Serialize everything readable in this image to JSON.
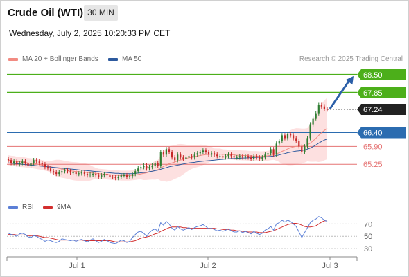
{
  "header": {
    "title": "Crude Oil (WTI)",
    "timeframe": "30 MIN",
    "datetime": "Wednesday, July 2, 2025 10:20:33 PM CET"
  },
  "legend": {
    "ma_bb_label": "MA 20 + Bollinger Bands",
    "ma50_label": "MA 50",
    "ma_bb_color": "#f28b82",
    "ma50_color": "#2d5a9e",
    "credit": "Research © 2025 Trading Central"
  },
  "colors": {
    "up": "#2e7d32",
    "down": "#c62828",
    "resistance": "#4caf1a",
    "pivot": "#2b6cb0",
    "support": "#e57373",
    "price_box": "#222222",
    "bb_fill": "#fde0e0",
    "rsi": "#5b7fd6",
    "rsi_ma": "#d32f2f",
    "arrow": "#2b5fa8"
  },
  "chart_data": [
    {
      "type": "candlestick",
      "y_range": [
        64.3,
        68.9
      ],
      "x_ticks": [
        "Jul 1",
        "Jul 2",
        "Jul 3"
      ],
      "levels": [
        {
          "value": 68.5,
          "label": "68.50",
          "kind": "resistance"
        },
        {
          "value": 67.85,
          "label": "67.85",
          "kind": "resistance"
        },
        {
          "value": 67.24,
          "label": "67.24",
          "kind": "last"
        },
        {
          "value": 66.4,
          "label": "66.40",
          "kind": "pivot"
        },
        {
          "value": 65.9,
          "label": "65.90",
          "kind": "support"
        },
        {
          "value": 65.25,
          "label": "65.25",
          "kind": "support"
        }
      ],
      "closes": [
        65.4,
        65.3,
        65.35,
        65.25,
        65.3,
        65.35,
        65.3,
        65.2,
        65.3,
        65.4,
        65.35,
        65.3,
        65.25,
        65.15,
        65.1,
        65.0,
        64.95,
        64.9,
        64.95,
        65.0,
        65.05,
        65.0,
        64.95,
        64.95,
        64.9,
        64.92,
        64.95,
        64.9,
        64.85,
        64.88,
        64.9,
        64.85,
        64.8,
        64.85,
        64.9,
        64.85,
        64.8,
        64.78,
        64.75,
        64.8,
        64.85,
        64.85,
        64.8,
        64.82,
        64.9,
        65.0,
        65.1,
        65.15,
        65.2,
        65.1,
        65.15,
        65.2,
        65.3,
        65.2,
        65.7,
        65.6,
        65.8,
        65.7,
        65.5,
        65.4,
        65.6,
        65.5,
        65.45,
        65.5,
        65.55,
        65.5,
        65.6,
        65.65,
        65.7,
        65.75,
        65.7,
        65.6,
        65.65,
        65.6,
        65.55,
        65.55,
        65.5,
        65.55,
        65.6,
        65.55,
        65.5,
        65.5,
        65.55,
        65.5,
        65.55,
        65.5,
        65.45,
        65.55,
        65.5,
        65.45,
        65.5,
        65.6,
        65.65,
        65.8,
        65.6,
        66.0,
        66.1,
        66.3,
        66.2,
        66.35,
        66.3,
        66.2,
        66.1,
        65.9,
        65.7,
        65.9,
        66.2,
        66.7,
        66.9,
        67.1,
        67.4,
        67.35,
        67.25,
        67.24
      ],
      "ma20": [
        65.4,
        65.38,
        65.37,
        65.35,
        65.34,
        65.33,
        65.32,
        65.3,
        65.29,
        65.28,
        65.26,
        65.24,
        65.22,
        65.2,
        65.18,
        65.16,
        65.14,
        65.12,
        65.1,
        65.08,
        65.06,
        65.04,
        65.02,
        65.0,
        64.99,
        64.98,
        64.97,
        64.96,
        64.95,
        64.94,
        64.93,
        64.92,
        64.91,
        64.9,
        64.89,
        64.88,
        64.87,
        64.86,
        64.85,
        64.85,
        64.84,
        64.84,
        64.84,
        64.84,
        64.85,
        64.86,
        64.88,
        64.9,
        64.92,
        64.94,
        64.97,
        65.0,
        65.03,
        65.06,
        65.12,
        65.17,
        65.22,
        65.27,
        65.3,
        65.33,
        65.37,
        65.4,
        65.43,
        65.46,
        65.49,
        65.51,
        65.53,
        65.55,
        65.57,
        65.59,
        65.6,
        65.61,
        65.62,
        65.62,
        65.62,
        65.62,
        65.61,
        65.61,
        65.6,
        65.6,
        65.59,
        65.58,
        65.58,
        65.57,
        65.57,
        65.56,
        65.55,
        65.55,
        65.55,
        65.54,
        65.54,
        65.55,
        65.56,
        65.58,
        65.59,
        65.63,
        65.67,
        65.72,
        65.76,
        65.81,
        65.85,
        65.88,
        65.9,
        65.91,
        65.91,
        65.93,
        65.96,
        66.02,
        66.1,
        66.19,
        66.3,
        66.4,
        66.48,
        66.55
      ],
      "ma50": [
        65.3,
        65.29,
        65.28,
        65.27,
        65.26,
        65.25,
        65.24,
        65.23,
        65.22,
        65.21,
        65.2,
        65.19,
        65.18,
        65.17,
        65.16,
        65.15,
        65.14,
        65.13,
        65.12,
        65.11,
        65.1,
        65.09,
        65.08,
        65.07,
        65.06,
        65.05,
        65.04,
        65.03,
        65.02,
        65.01,
        65.0,
        64.99,
        64.98,
        64.97,
        64.96,
        64.95,
        64.94,
        64.93,
        64.92,
        64.92,
        64.91,
        64.91,
        64.91,
        64.91,
        64.91,
        64.92,
        64.93,
        64.94,
        64.95,
        64.96,
        64.98,
        65.0,
        65.02,
        65.04,
        65.07,
        65.1,
        65.13,
        65.16,
        65.18,
        65.2,
        65.22,
        65.24,
        65.26,
        65.28,
        65.3,
        65.31,
        65.32,
        65.34,
        65.35,
        65.36,
        65.37,
        65.38,
        65.39,
        65.4,
        65.41,
        65.42,
        65.43,
        65.44,
        65.45,
        65.46,
        65.46,
        65.47,
        65.47,
        65.48,
        65.48,
        65.49,
        65.49,
        65.5,
        65.5,
        65.51,
        65.51,
        65.52,
        65.53,
        65.54,
        65.55,
        65.57,
        65.59,
        65.62,
        65.64,
        65.67,
        65.69,
        65.71,
        65.73,
        65.74,
        65.75,
        65.77,
        65.8,
        65.84,
        65.89,
        65.95,
        66.02,
        66.08,
        66.13,
        66.17
      ]
    },
    {
      "type": "line",
      "name": "RSI",
      "y_ticks": [
        70,
        50,
        30
      ],
      "y_range": [
        20,
        85
      ],
      "series": [
        {
          "name": "RSI",
          "values": [
            55,
            53,
            52,
            50,
            54,
            55,
            53,
            49,
            48,
            51,
            50,
            47,
            45,
            42,
            44,
            43,
            41,
            40,
            42,
            46,
            45,
            44,
            43,
            44,
            42,
            44,
            45,
            43,
            41,
            44,
            46,
            43,
            40,
            42,
            45,
            43,
            40,
            39,
            38,
            41,
            44,
            43,
            40,
            42,
            48,
            53,
            57,
            58,
            55,
            50,
            56,
            60,
            62,
            58,
            72,
            68,
            74,
            70,
            63,
            60,
            66,
            62,
            60,
            62,
            64,
            61,
            64,
            66,
            67,
            69,
            66,
            62,
            63,
            61,
            59,
            60,
            58,
            60,
            62,
            59,
            57,
            57,
            59,
            56,
            58,
            56,
            54,
            58,
            55,
            53,
            55,
            60,
            62,
            66,
            60,
            70,
            72,
            76,
            73,
            76,
            74,
            70,
            66,
            57,
            48,
            56,
            64,
            72,
            76,
            78,
            82,
            80,
            76,
            74
          ]
        },
        {
          "name": "9MA",
          "values": [
            53,
            53,
            53,
            52,
            52,
            52,
            52,
            51,
            51,
            51,
            51,
            50,
            49,
            48,
            48,
            47,
            46,
            45,
            44,
            44,
            44,
            44,
            44,
            44,
            44,
            44,
            44,
            43,
            43,
            43,
            43,
            43,
            43,
            43,
            43,
            43,
            43,
            42,
            41,
            41,
            41,
            41,
            41,
            41,
            42,
            43,
            45,
            47,
            48,
            49,
            50,
            52,
            54,
            55,
            58,
            60,
            62,
            64,
            65,
            65,
            65,
            65,
            64,
            64,
            63,
            63,
            63,
            63,
            63,
            63,
            63,
            63,
            63,
            63,
            62,
            62,
            61,
            61,
            61,
            60,
            60,
            59,
            59,
            58,
            58,
            57,
            57,
            57,
            57,
            56,
            56,
            56,
            57,
            58,
            59,
            61,
            63,
            65,
            67,
            69,
            70,
            71,
            71,
            70,
            68,
            66,
            65,
            65,
            66,
            67,
            70,
            73,
            75,
            75
          ]
        }
      ]
    }
  ],
  "rsi_legend": {
    "rsi_label": "RSI",
    "ma_label": "9MA"
  }
}
